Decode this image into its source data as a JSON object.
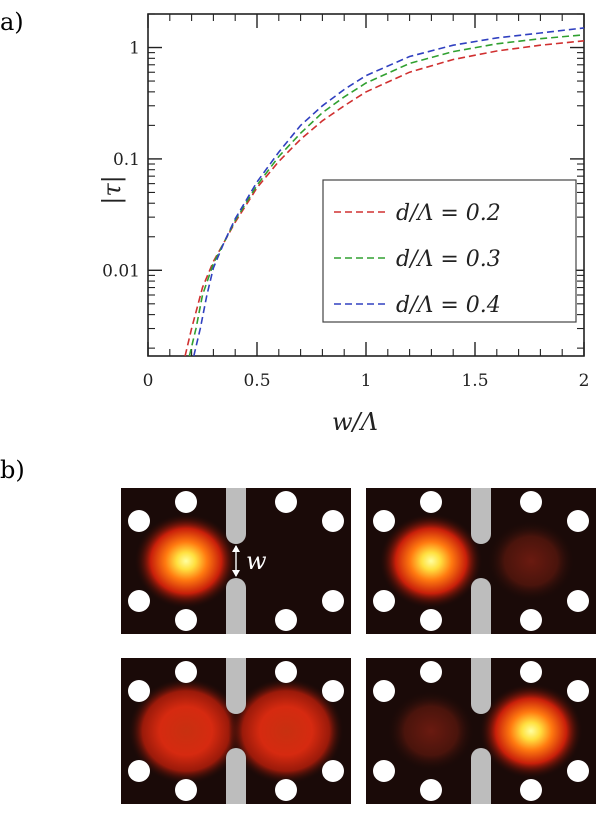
{
  "panel_a_label": "a)",
  "panel_b_label": "b)",
  "gap_label": "w",
  "chart_data": {
    "type": "line",
    "xlabel": "w/Λ",
    "ylabel": "|τ|",
    "xlim": [
      0,
      2
    ],
    "ylim": [
      0.0017,
      2
    ],
    "yscale": "log",
    "x_ticks": [
      0,
      0.5,
      1,
      1.5,
      2
    ],
    "x_tick_labels": [
      "0",
      "0.5",
      "1",
      "1.5",
      "2"
    ],
    "y_ticks": [
      0.01,
      0.1,
      1
    ],
    "y_tick_labels": [
      "0.01",
      "0.1",
      "1"
    ],
    "grid": false,
    "legend_position": "lower-right",
    "line_style": "dashed",
    "series": [
      {
        "name": "d/Λ = 0.2",
        "color": "#d03030",
        "x": [
          0.17,
          0.2,
          0.25,
          0.3,
          0.35,
          0.4,
          0.5,
          0.6,
          0.7,
          0.8,
          0.9,
          1.0,
          1.2,
          1.4,
          1.6,
          1.8,
          2.0
        ],
        "y": [
          0.0017,
          0.003,
          0.007,
          0.012,
          0.018,
          0.027,
          0.055,
          0.095,
          0.15,
          0.22,
          0.3,
          0.4,
          0.6,
          0.78,
          0.93,
          1.05,
          1.15
        ]
      },
      {
        "name": "d/Λ = 0.3",
        "color": "#30a030",
        "x": [
          0.19,
          0.22,
          0.25,
          0.3,
          0.35,
          0.4,
          0.5,
          0.6,
          0.7,
          0.8,
          0.9,
          1.0,
          1.2,
          1.4,
          1.6,
          1.8,
          2.0
        ],
        "y": [
          0.0017,
          0.003,
          0.006,
          0.0115,
          0.018,
          0.028,
          0.058,
          0.105,
          0.17,
          0.26,
          0.36,
          0.48,
          0.72,
          0.92,
          1.08,
          1.2,
          1.3
        ]
      },
      {
        "name": "d/Λ = 0.4",
        "color": "#3040c0",
        "x": [
          0.21,
          0.24,
          0.27,
          0.3,
          0.35,
          0.4,
          0.5,
          0.6,
          0.7,
          0.8,
          0.9,
          1.0,
          1.2,
          1.4,
          1.6,
          1.8,
          2.0
        ],
        "y": [
          0.0017,
          0.003,
          0.006,
          0.0105,
          0.018,
          0.029,
          0.062,
          0.115,
          0.2,
          0.3,
          0.42,
          0.56,
          0.83,
          1.05,
          1.22,
          1.35,
          1.5
        ]
      }
    ]
  },
  "mode_images": [
    {
      "left_intensity": 1.0,
      "right_intensity": 0.0
    },
    {
      "left_intensity": 1.0,
      "right_intensity": 0.28
    },
    {
      "left_intensity": 0.62,
      "right_intensity": 0.62
    },
    {
      "left_intensity": 0.28,
      "right_intensity": 1.0
    }
  ],
  "colors": {
    "background": "#1a0a08",
    "hole": "#ffffff",
    "slot": "#bdbdbd"
  }
}
